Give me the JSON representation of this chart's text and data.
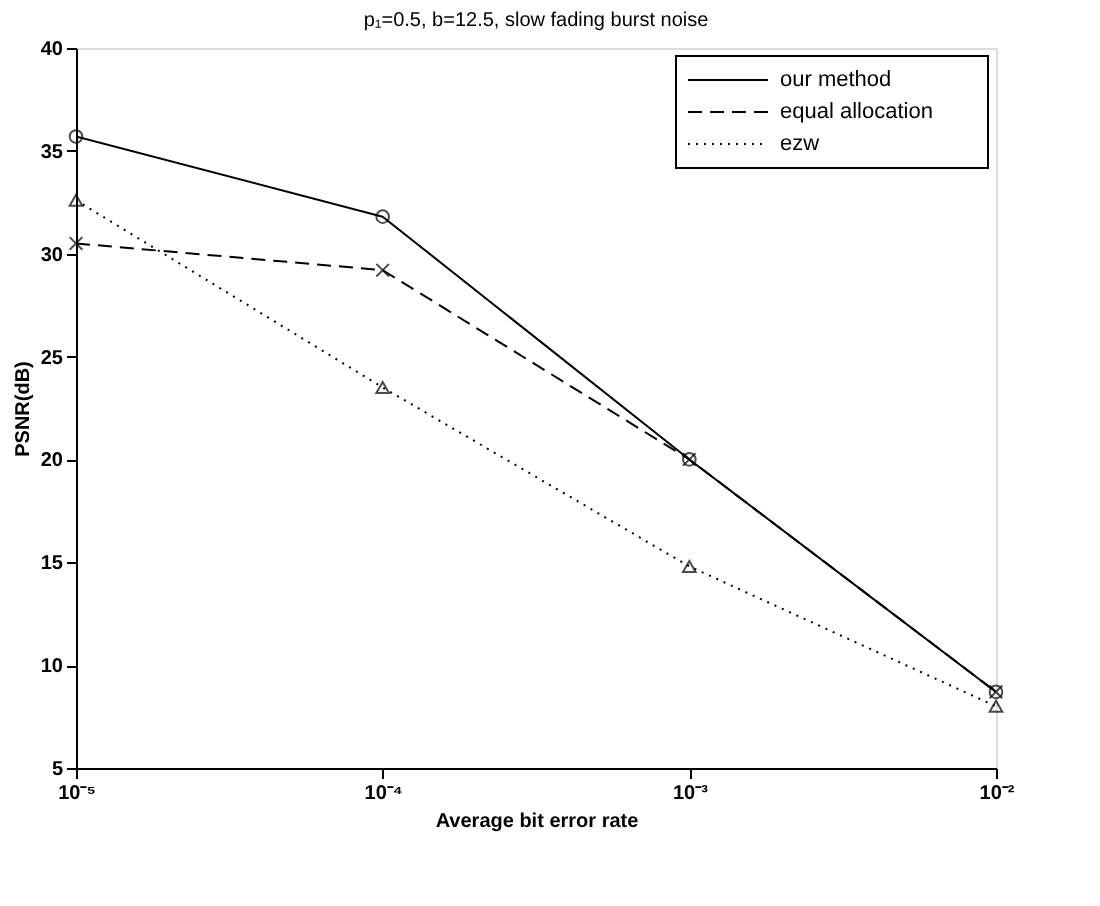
{
  "chart_data": {
    "type": "line",
    "title": "p₁=0.5, b=12.5, slow fading burst noise",
    "xlabel": "Average bit error rate",
    "ylabel": "PSNR(dB)",
    "x": [
      1e-05,
      0.0001,
      0.001,
      0.01
    ],
    "log": "x",
    "xlim": [
      1e-05,
      0.01
    ],
    "xticks": [
      {
        "value": 1e-05,
        "label": "10⁻⁵"
      },
      {
        "value": 0.0001,
        "label": "10⁻⁴"
      },
      {
        "value": 0.001,
        "label": "10⁻³"
      },
      {
        "value": 0.01,
        "label": "10⁻²"
      }
    ],
    "ylim": [
      5,
      40
    ],
    "yticks": [
      5,
      10,
      15,
      20,
      25,
      30,
      35,
      40
    ],
    "grid": false,
    "legend": "top right",
    "series": [
      {
        "name": "our method",
        "color": "#000000",
        "line_style": "solid",
        "marker": "circle",
        "values": [
          35.7,
          31.8,
          20.0,
          8.7
        ]
      },
      {
        "name": "equal allocation",
        "color": "#000000",
        "line_style": "dashed",
        "marker": "cross",
        "values": [
          30.5,
          29.2,
          20.0,
          8.7
        ]
      },
      {
        "name": "ezw",
        "color": "#000000",
        "line_style": "dotted",
        "marker": "triangle",
        "values": [
          32.6,
          23.5,
          14.8,
          8.0
        ]
      }
    ]
  }
}
